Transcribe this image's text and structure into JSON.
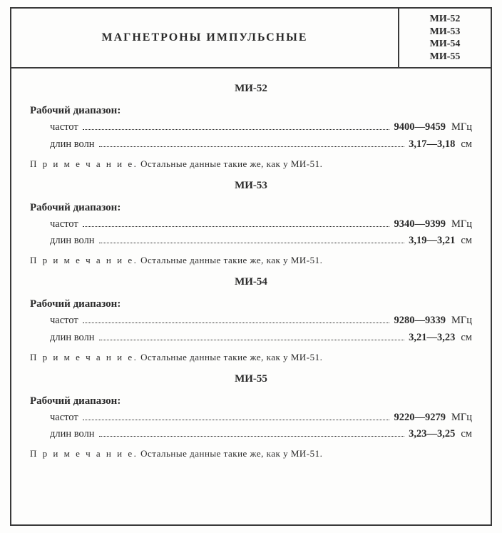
{
  "header": {
    "title": "МАГНЕТРОНЫ ИМПУЛЬСНЫЕ",
    "codes": [
      "МИ-52",
      "МИ-53",
      "МИ-54",
      "МИ-55"
    ]
  },
  "sectionLabel": "Рабочий диапазон:",
  "rowLabels": {
    "freq": "частот",
    "wave": "длин волн"
  },
  "noteLabel": "П р и м е ч а н и е.",
  "noteText": "Остальные данные такие же, как у МИ-51.",
  "models": [
    {
      "name": "МИ-52",
      "freq": {
        "value": "9400—9459",
        "unit": "МГц"
      },
      "wave": {
        "value": "3,17—3,18",
        "unit": "см"
      }
    },
    {
      "name": "МИ-53",
      "freq": {
        "value": "9340—9399",
        "unit": "МГц"
      },
      "wave": {
        "value": "3,19—3,21",
        "unit": "см"
      }
    },
    {
      "name": "МИ-54",
      "freq": {
        "value": "9280—9339",
        "unit": "МГц"
      },
      "wave": {
        "value": "3,21—3,23",
        "unit": "см"
      }
    },
    {
      "name": "МИ-55",
      "freq": {
        "value": "9220—9279",
        "unit": "МГц"
      },
      "wave": {
        "value": "3,23—3,25",
        "unit": "см"
      }
    }
  ]
}
